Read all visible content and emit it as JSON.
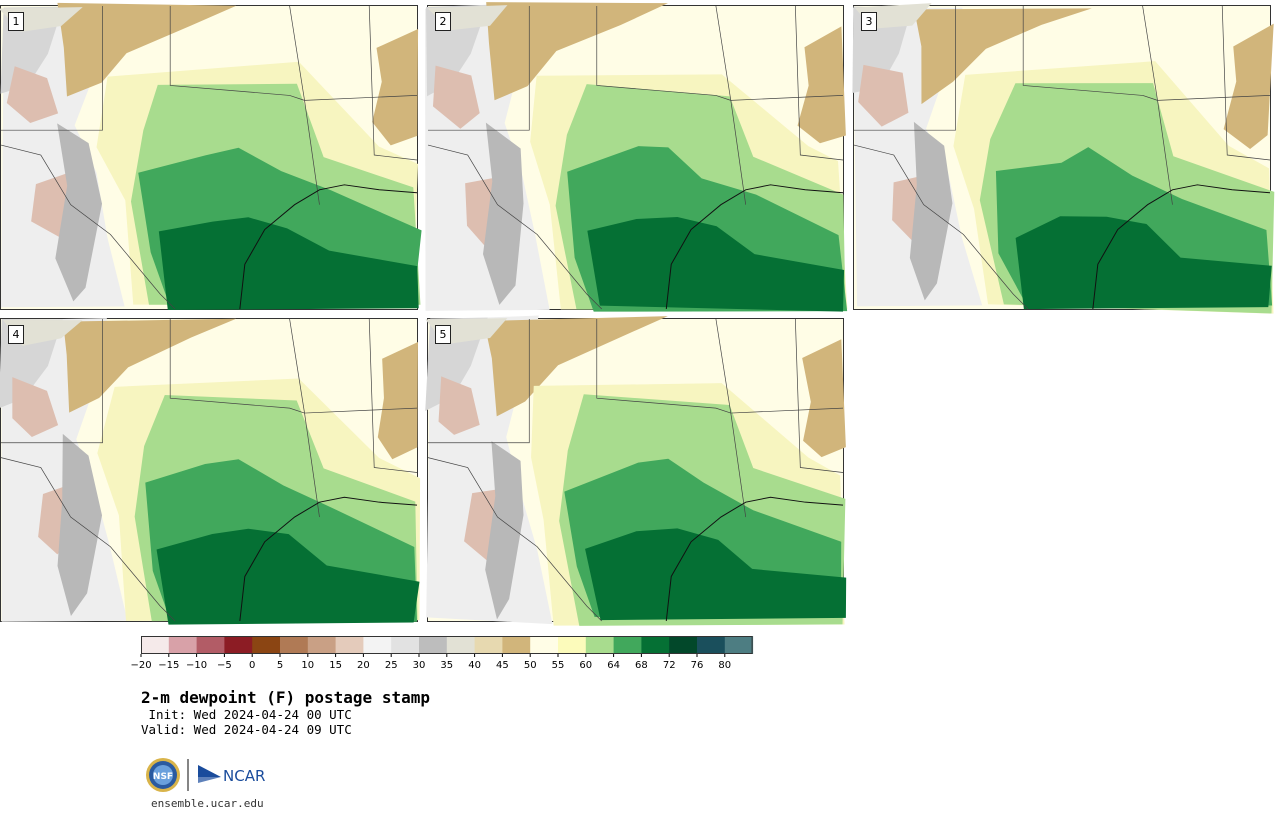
{
  "panels": [
    {
      "label": "1"
    },
    {
      "label": "2"
    },
    {
      "label": "3"
    },
    {
      "label": "4"
    },
    {
      "label": "5"
    }
  ],
  "colorbar": {
    "colors": [
      "#f5eaea",
      "#d8a1a8",
      "#b25c66",
      "#8c1c24",
      "#8b4513",
      "#b07a55",
      "#c9a085",
      "#e4cbbb",
      "#f3f3f3",
      "#e2e2e2",
      "#bdbdbd",
      "#e2e1d5",
      "#e7d9b0",
      "#d1b57b",
      "#fffde6",
      "#fcfbbb",
      "#a8dc8e",
      "#41a85c",
      "#057034",
      "#02482a",
      "#1a4f5c",
      "#4d7d82"
    ],
    "ticks": [
      "−20",
      "−15",
      "−10",
      "−5",
      "0",
      "5",
      "10",
      "15",
      "20",
      "25",
      "30",
      "35",
      "40",
      "45",
      "50",
      "55",
      "60",
      "64",
      "68",
      "72",
      "76",
      "80"
    ]
  },
  "title": "2-m dewpoint (F) postage stamp",
  "init_line": " Init: Wed 2024-04-24 00 UTC",
  "valid_line": "Valid: Wed 2024-04-24 09 UTC",
  "logos": {
    "nsf": "NSF",
    "ncar": "NCAR"
  },
  "website": "ensemble.ucar.edu"
}
